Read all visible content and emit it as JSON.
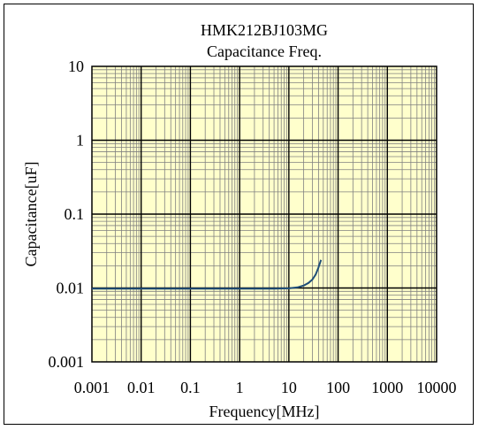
{
  "chart_data": {
    "type": "line",
    "title": "HMK212BJ103MG",
    "subtitle": "Capacitance Freq.",
    "xlabel": "Frequency[MHz]",
    "ylabel": "Capacitance[uF]",
    "xscale": "log",
    "yscale": "log",
    "xlim": [
      0.001,
      10000
    ],
    "ylim": [
      0.001,
      10
    ],
    "x_ticks": [
      "0.001",
      "0.01",
      "0.1",
      "1",
      "10",
      "100",
      "1000",
      "10000"
    ],
    "y_ticks": [
      "10",
      "1",
      "0.1",
      "0.01",
      "0.001"
    ],
    "grid": true,
    "plot_background": "#FFFFCC",
    "series": [
      {
        "color": "#1F4E79",
        "x": [
          0.001,
          0.01,
          0.1,
          1,
          5,
          10,
          15,
          20,
          25,
          30,
          35,
          40,
          45
        ],
        "y": [
          0.0098,
          0.0098,
          0.0098,
          0.0098,
          0.0098,
          0.0099,
          0.0102,
          0.0108,
          0.0117,
          0.013,
          0.0152,
          0.019,
          0.024
        ]
      }
    ]
  }
}
